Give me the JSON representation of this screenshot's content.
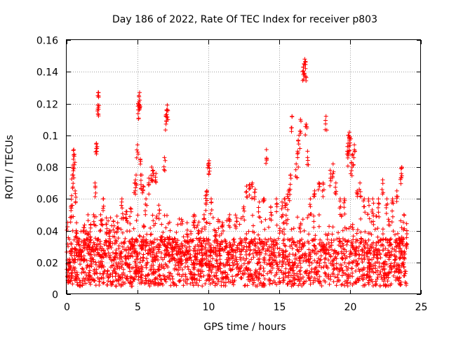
{
  "chart_data": {
    "type": "scatter",
    "title": "Day 186 of 2022, Rate Of TEC Index for receiver p803",
    "xlabel": "GPS time / hours",
    "ylabel": "ROTI / TECUs",
    "xlim": [
      0,
      25
    ],
    "ylim": [
      0,
      0.16
    ],
    "xticks": [
      0,
      5,
      10,
      15,
      20,
      25
    ],
    "yticks": [
      0,
      0.02,
      0.04,
      0.06,
      0.08,
      0.1,
      0.12,
      0.14,
      0.16
    ],
    "xtick_labels": [
      "0",
      "5",
      "10",
      "15",
      "20",
      "25"
    ],
    "ytick_labels": [
      "0",
      "0.02",
      "0.04",
      "0.06",
      "0.08",
      "0.1",
      "0.12",
      "0.14",
      "0.16"
    ],
    "grid": true,
    "marker": "+",
    "color": "#ff0000",
    "series": [
      {
        "name": "ROTI",
        "points": [
          [
            0.1,
            0.015
          ],
          [
            0.2,
            0.022
          ],
          [
            0.3,
            0.055
          ],
          [
            0.35,
            0.062
          ],
          [
            0.4,
            0.075
          ],
          [
            0.45,
            0.08
          ],
          [
            0.5,
            0.091
          ],
          [
            0.55,
            0.088
          ],
          [
            0.6,
            0.065
          ],
          [
            0.7,
            0.045
          ],
          [
            0.8,
            0.035
          ],
          [
            1.0,
            0.028
          ],
          [
            1.2,
            0.042
          ],
          [
            1.5,
            0.038
          ],
          [
            1.7,
            0.044
          ],
          [
            1.9,
            0.05
          ],
          [
            2.0,
            0.07
          ],
          [
            2.1,
            0.095
          ],
          [
            2.15,
            0.093
          ],
          [
            2.2,
            0.119
          ],
          [
            2.2,
            0.125
          ],
          [
            2.25,
            0.127
          ],
          [
            2.4,
            0.05
          ],
          [
            2.6,
            0.06
          ],
          [
            2.8,
            0.048
          ],
          [
            3.0,
            0.04
          ],
          [
            3.3,
            0.046
          ],
          [
            3.6,
            0.045
          ],
          [
            3.9,
            0.06
          ],
          [
            4.2,
            0.052
          ],
          [
            4.5,
            0.054
          ],
          [
            4.8,
            0.07
          ],
          [
            4.9,
            0.075
          ],
          [
            5.0,
            0.094
          ],
          [
            5.05,
            0.12
          ],
          [
            5.1,
            0.121
          ],
          [
            5.1,
            0.125
          ],
          [
            5.15,
            0.127
          ],
          [
            5.2,
            0.085
          ],
          [
            5.3,
            0.075
          ],
          [
            5.4,
            0.068
          ],
          [
            5.6,
            0.06
          ],
          [
            5.8,
            0.073
          ],
          [
            6.0,
            0.08
          ],
          [
            6.1,
            0.078
          ],
          [
            6.3,
            0.076
          ],
          [
            6.5,
            0.056
          ],
          [
            6.7,
            0.044
          ],
          [
            6.9,
            0.086
          ],
          [
            7.0,
            0.112
          ],
          [
            7.05,
            0.116
          ],
          [
            7.1,
            0.119
          ],
          [
            7.3,
            0.04
          ],
          [
            7.6,
            0.035
          ],
          [
            8.0,
            0.03
          ],
          [
            8.5,
            0.045
          ],
          [
            9.0,
            0.05
          ],
          [
            9.3,
            0.04
          ],
          [
            9.7,
            0.05
          ],
          [
            9.8,
            0.062
          ],
          [
            9.9,
            0.065
          ],
          [
            10.0,
            0.082
          ],
          [
            10.05,
            0.084
          ],
          [
            10.2,
            0.06
          ],
          [
            10.5,
            0.04
          ],
          [
            11.0,
            0.045
          ],
          [
            11.5,
            0.05
          ],
          [
            12.0,
            0.048
          ],
          [
            12.5,
            0.055
          ],
          [
            12.7,
            0.068
          ],
          [
            12.9,
            0.069
          ],
          [
            13.1,
            0.07
          ],
          [
            13.3,
            0.066
          ],
          [
            13.6,
            0.058
          ],
          [
            13.9,
            0.06
          ],
          [
            14.1,
            0.091
          ],
          [
            14.4,
            0.055
          ],
          [
            14.8,
            0.06
          ],
          [
            15.2,
            0.058
          ],
          [
            15.4,
            0.06
          ],
          [
            15.6,
            0.063
          ],
          [
            15.7,
            0.066
          ],
          [
            15.8,
            0.075
          ],
          [
            15.9,
            0.112
          ],
          [
            16.2,
            0.082
          ],
          [
            16.3,
            0.09
          ],
          [
            16.4,
            0.1
          ],
          [
            16.5,
            0.11
          ],
          [
            16.7,
            0.143
          ],
          [
            16.75,
            0.145
          ],
          [
            16.8,
            0.148
          ],
          [
            16.85,
            0.142
          ],
          [
            16.9,
            0.107
          ],
          [
            17.0,
            0.09
          ],
          [
            17.2,
            0.06
          ],
          [
            17.5,
            0.065
          ],
          [
            17.8,
            0.07
          ],
          [
            18.1,
            0.07
          ],
          [
            18.3,
            0.112
          ],
          [
            18.6,
            0.078
          ],
          [
            18.8,
            0.082
          ],
          [
            19.0,
            0.07
          ],
          [
            19.3,
            0.06
          ],
          [
            19.6,
            0.06
          ],
          [
            19.8,
            0.09
          ],
          [
            19.85,
            0.095
          ],
          [
            19.9,
            0.1
          ],
          [
            19.95,
            0.102
          ],
          [
            20.0,
            0.099
          ],
          [
            20.1,
            0.083
          ],
          [
            20.2,
            0.088
          ],
          [
            20.3,
            0.094
          ],
          [
            20.5,
            0.065
          ],
          [
            20.7,
            0.07
          ],
          [
            21.0,
            0.06
          ],
          [
            21.3,
            0.06
          ],
          [
            21.6,
            0.06
          ],
          [
            22.0,
            0.06
          ],
          [
            22.3,
            0.072
          ],
          [
            22.6,
            0.06
          ],
          [
            23.0,
            0.06
          ],
          [
            23.3,
            0.065
          ],
          [
            23.6,
            0.079
          ],
          [
            23.65,
            0.08
          ],
          [
            23.8,
            0.05
          ],
          [
            24.0,
            0.04
          ]
        ],
        "baseline_band": {
          "description": "dense band of ROTI values across the whole day",
          "x_range": [
            0,
            24
          ],
          "y_typical_min": 0.005,
          "y_typical_max": 0.035,
          "y_occasional_max": 0.05
        }
      }
    ]
  }
}
